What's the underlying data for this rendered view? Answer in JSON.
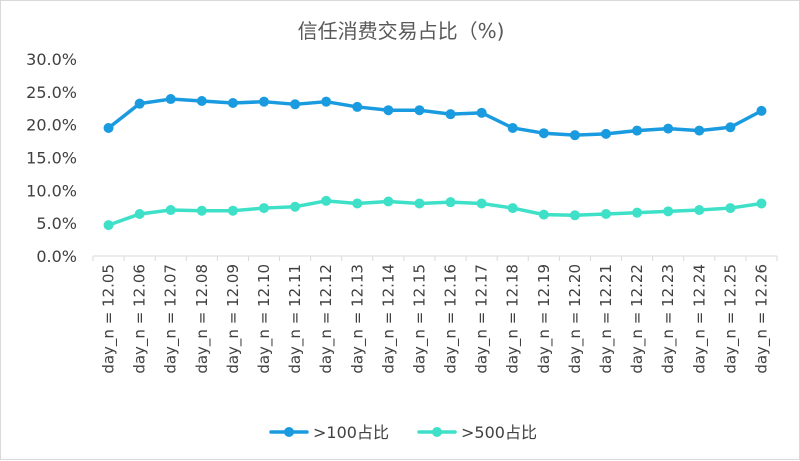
{
  "chart_data": {
    "type": "line",
    "title": "信任消费交易占比（%)",
    "categories": [
      "day_n = 12.05",
      "day_n = 12.06",
      "day_n = 12.07",
      "day_n = 12.08",
      "day_n = 12.09",
      "day_n = 12.10",
      "day_n = 12.11",
      "day_n = 12.12",
      "day_n = 12.13",
      "day_n = 12.14",
      "day_n = 12.15",
      "day_n = 12.16",
      "day_n = 12.17",
      "day_n = 12.18",
      "day_n = 12.19",
      "day_n = 12.20",
      "day_n = 12.21",
      "day_n = 12.22",
      "day_n = 12.23",
      "day_n = 12.24",
      "day_n = 12.25",
      "day_n = 12.26"
    ],
    "series": [
      {
        "name": ">100占比",
        "color": "#1a9be0",
        "values": [
          19.5,
          23.2,
          23.9,
          23.6,
          23.3,
          23.5,
          23.1,
          23.5,
          22.7,
          22.2,
          22.2,
          21.6,
          21.8,
          19.5,
          18.7,
          18.4,
          18.6,
          19.1,
          19.4,
          19.1,
          19.6,
          22.1
        ]
      },
      {
        "name": ">500占比",
        "color": "#3ee0c8",
        "values": [
          4.7,
          6.4,
          7.0,
          6.9,
          6.9,
          7.3,
          7.5,
          8.4,
          8.0,
          8.3,
          8.0,
          8.2,
          8.0,
          7.3,
          6.3,
          6.2,
          6.4,
          6.6,
          6.8,
          7.0,
          7.3,
          8.0
        ]
      }
    ],
    "yticks": [
      "0.0%",
      "5.0%",
      "10.0%",
      "15.0%",
      "20.0%",
      "25.0%",
      "30.0%"
    ],
    "ylim": [
      0,
      30
    ],
    "grid": false,
    "legend_position": "bottom"
  }
}
